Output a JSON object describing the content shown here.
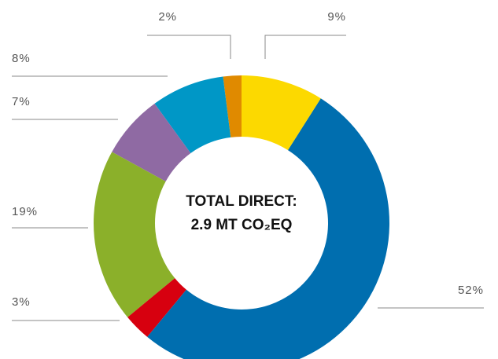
{
  "chart_data": {
    "type": "donut",
    "center_text": [
      "TOTAL DIRECT:",
      "2.9 MT CO₂EQ"
    ],
    "categories": [
      null,
      null,
      null,
      null,
      null,
      null,
      null
    ],
    "values": [
      9,
      52,
      3,
      19,
      7,
      8,
      2
    ],
    "value_labels": [
      "9%",
      "52%",
      "3%",
      "19%",
      "7%",
      "8%",
      "2%"
    ],
    "colors": [
      "#fcd900",
      "#006eaf",
      "#d7000f",
      "#8bb02a",
      "#8f6aa3",
      "#0097c6",
      "#e08a00"
    ]
  }
}
